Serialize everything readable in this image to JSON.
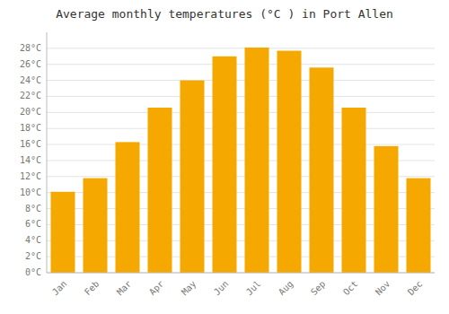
{
  "chart_data": {
    "type": "bar",
    "title": "Average monthly temperatures (°C ) in Port Allen",
    "categories": [
      "Jan",
      "Feb",
      "Mar",
      "Apr",
      "May",
      "Jun",
      "Jul",
      "Aug",
      "Sep",
      "Oct",
      "Nov",
      "Dec"
    ],
    "values": [
      10.1,
      11.8,
      16.3,
      20.6,
      24.0,
      27.0,
      28.1,
      27.7,
      25.6,
      20.6,
      15.8,
      11.8
    ],
    "color": "#F5A800",
    "ylim": [
      0,
      30
    ],
    "yticks": [
      {
        "value": 0,
        "label": "0°C"
      },
      {
        "value": 2,
        "label": "2°C"
      },
      {
        "value": 4,
        "label": "4°C"
      },
      {
        "value": 6,
        "label": "6°C"
      },
      {
        "value": 8,
        "label": "8°C"
      },
      {
        "value": 10,
        "label": "10°C"
      },
      {
        "value": 12,
        "label": "12°C"
      },
      {
        "value": 14,
        "label": "14°C"
      },
      {
        "value": 16,
        "label": "16°C"
      },
      {
        "value": 18,
        "label": "18°C"
      },
      {
        "value": 20,
        "label": "20°C"
      },
      {
        "value": 22,
        "label": "22°C"
      },
      {
        "value": 24,
        "label": "24°C"
      },
      {
        "value": 26,
        "label": "26°C"
      },
      {
        "value": 28,
        "label": "28°C"
      }
    ],
    "grid": true
  }
}
